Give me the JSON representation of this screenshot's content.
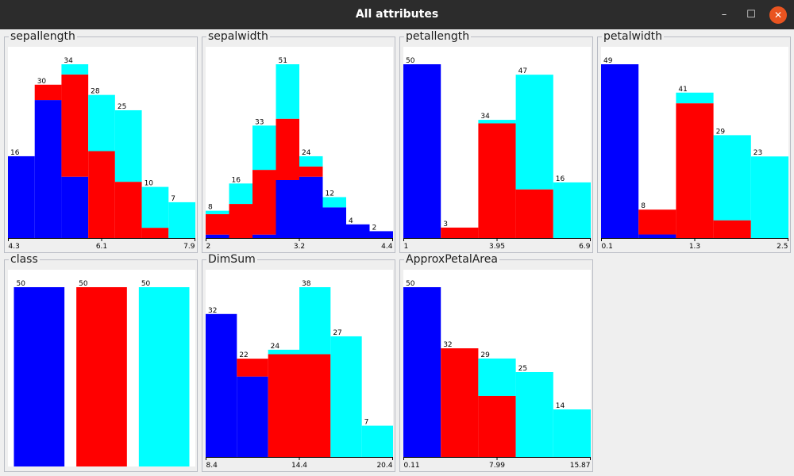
{
  "window": {
    "title": "All attributes",
    "buttons": {
      "minimize": "–",
      "maximize": "☐",
      "close": "✕"
    }
  },
  "colors": {
    "class_colors": [
      "#0000ff",
      "#ff0000",
      "#00ffff"
    ],
    "plot_background": "#ffffff",
    "panel_border": "#b9bcc4",
    "titlebar": "#2c2c2c",
    "close_button": "#e95420"
  },
  "chart_data": [
    {
      "type": "bar",
      "stacked": true,
      "title": "sepallength",
      "ticks": [
        "4.3",
        "6.1",
        "7.9"
      ],
      "totals": [
        16,
        30,
        34,
        28,
        25,
        10,
        7
      ],
      "series": [
        {
          "values": [
            16,
            27,
            12,
            0,
            0,
            0,
            0
          ]
        },
        {
          "values": [
            0,
            3,
            20,
            17,
            11,
            2,
            0
          ]
        },
        {
          "values": [
            0,
            0,
            2,
            11,
            14,
            8,
            7
          ]
        }
      ]
    },
    {
      "type": "bar",
      "stacked": true,
      "title": "sepalwidth",
      "ticks": [
        "2",
        "3.2",
        "4.4"
      ],
      "totals": [
        8,
        16,
        33,
        51,
        24,
        12,
        4,
        2
      ],
      "series": [
        {
          "values": [
            1,
            0,
            1,
            17,
            18,
            9,
            4,
            2
          ]
        },
        {
          "values": [
            6,
            10,
            19,
            18,
            3,
            0,
            0,
            0
          ]
        },
        {
          "values": [
            1,
            6,
            13,
            16,
            3,
            3,
            0,
            0
          ]
        }
      ]
    },
    {
      "type": "bar",
      "stacked": true,
      "title": "petallength",
      "ticks": [
        "1",
        "3.95",
        "6.9"
      ],
      "totals": [
        50,
        3,
        34,
        47,
        16
      ],
      "series": [
        {
          "values": [
            50,
            0,
            0,
            0,
            0
          ]
        },
        {
          "values": [
            0,
            3,
            33,
            14,
            0
          ]
        },
        {
          "values": [
            0,
            0,
            1,
            33,
            16
          ]
        }
      ]
    },
    {
      "type": "bar",
      "stacked": true,
      "title": "petalwidth",
      "ticks": [
        "0.1",
        "1.3",
        "2.5"
      ],
      "totals": [
        49,
        8,
        41,
        29,
        23
      ],
      "series": [
        {
          "values": [
            49,
            1,
            0,
            0,
            0
          ]
        },
        {
          "values": [
            0,
            7,
            38,
            5,
            0
          ]
        },
        {
          "values": [
            0,
            0,
            3,
            24,
            23
          ]
        }
      ]
    },
    {
      "type": "bar",
      "stacked": true,
      "title": "class",
      "ticks": [],
      "totals": [
        50,
        50,
        50
      ],
      "series": [
        {
          "values": [
            50,
            0,
            0
          ]
        },
        {
          "values": [
            0,
            50,
            0
          ]
        },
        {
          "values": [
            0,
            0,
            50
          ]
        }
      ]
    },
    {
      "type": "bar",
      "stacked": true,
      "title": "DimSum",
      "ticks": [
        "8.4",
        "14.4",
        "20.4"
      ],
      "totals": [
        32,
        22,
        24,
        38,
        27,
        7
      ],
      "series": [
        {
          "values": [
            32,
            18,
            0,
            0,
            0,
            0
          ]
        },
        {
          "values": [
            0,
            4,
            23,
            23,
            0,
            0
          ]
        },
        {
          "values": [
            0,
            0,
            1,
            15,
            27,
            7
          ]
        }
      ]
    },
    {
      "type": "bar",
      "stacked": true,
      "title": "ApproxPetalArea",
      "ticks": [
        "0.11",
        "7.99",
        "15.87"
      ],
      "totals": [
        50,
        32,
        29,
        25,
        14
      ],
      "series": [
        {
          "values": [
            50,
            0,
            0,
            0,
            0
          ]
        },
        {
          "values": [
            0,
            32,
            18,
            0,
            0
          ]
        },
        {
          "values": [
            0,
            0,
            11,
            25,
            14
          ]
        }
      ]
    }
  ]
}
